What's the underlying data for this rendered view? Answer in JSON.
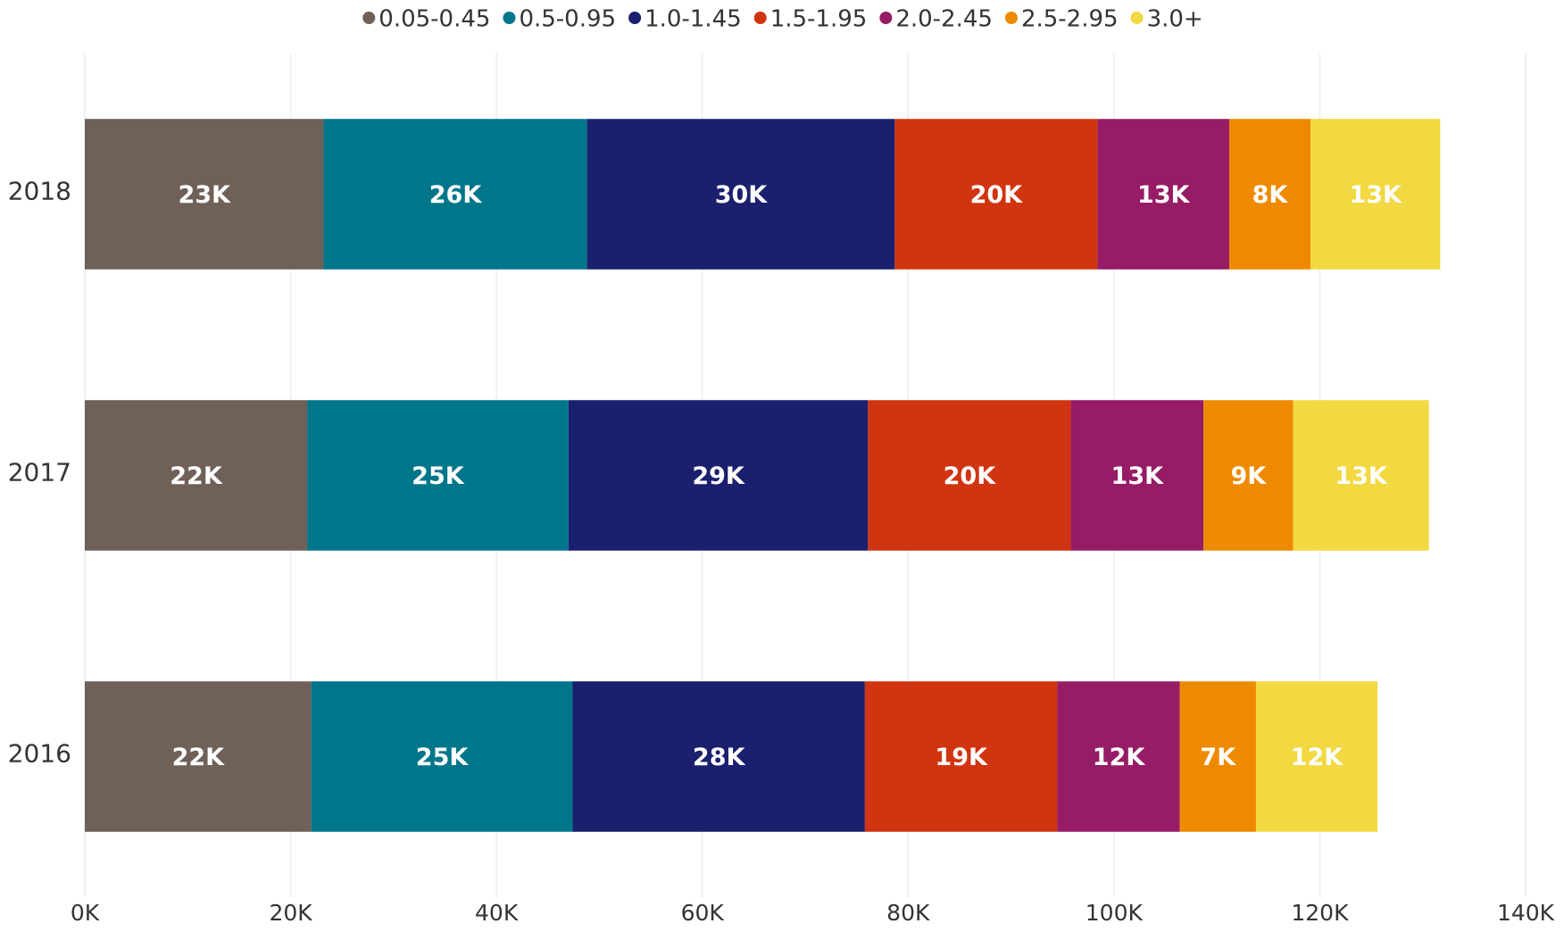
{
  "chart_data": {
    "type": "stacked_barh",
    "categories": [
      "2018",
      "2017",
      "2016"
    ],
    "series": [
      {
        "name": "0.05-0.45",
        "color": "#6f6158",
        "values": [
          23200,
          21600,
          22000
        ],
        "value_labels": [
          "23K",
          "22K",
          "22K"
        ]
      },
      {
        "name": "0.5-0.95",
        "color": "#00768a",
        "values": [
          25600,
          25400,
          25400
        ],
        "value_labels": [
          "26K",
          "25K",
          "25K"
        ]
      },
      {
        "name": "1.0-1.45",
        "color": "#1a1f6e",
        "values": [
          29900,
          29100,
          28400
        ],
        "value_labels": [
          "30K",
          "29K",
          "28K"
        ]
      },
      {
        "name": "1.5-1.95",
        "color": "#d13410",
        "values": [
          19700,
          19700,
          18700
        ],
        "value_labels": [
          "20K",
          "20K",
          "19K"
        ]
      },
      {
        "name": "2.0-2.45",
        "color": "#961c66",
        "values": [
          12800,
          12900,
          11900
        ],
        "value_labels": [
          "13K",
          "13K",
          "12K"
        ]
      },
      {
        "name": "2.5-2.95",
        "color": "#ee8a00",
        "values": [
          7900,
          8700,
          7400
        ],
        "value_labels": [
          "8K",
          "9K",
          "7K"
        ]
      },
      {
        "name": "3.0+",
        "color": "#f2d841",
        "values": [
          12600,
          13200,
          11800
        ],
        "value_labels": [
          "13K",
          "13K",
          "12K"
        ]
      }
    ],
    "xlim": [
      0,
      140000
    ],
    "xticks": [
      {
        "value": 0,
        "label": "0K"
      },
      {
        "value": 20000,
        "label": "20K"
      },
      {
        "value": 40000,
        "label": "40K"
      },
      {
        "value": 60000,
        "label": "60K"
      },
      {
        "value": 80000,
        "label": "80K"
      },
      {
        "value": 100000,
        "label": "100K"
      },
      {
        "value": 120000,
        "label": "120K"
      },
      {
        "value": 140000,
        "label": "140K"
      }
    ],
    "grid": true,
    "legend": "top"
  }
}
